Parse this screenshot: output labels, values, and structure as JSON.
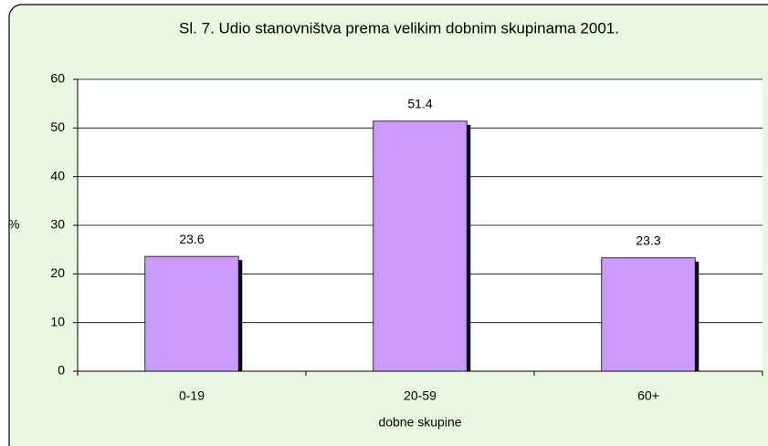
{
  "chart_data": {
    "type": "bar",
    "title": "Sl. 7. Udio stanovništva prema velikim dobnim skupinama 2001.",
    "y_label": "%",
    "x_label": "dobne skupine",
    "categories": [
      "0-19",
      "20-59",
      "60+"
    ],
    "values": [
      23.6,
      51.4,
      23.3
    ],
    "color": "#cc99ff",
    "ylim": [
      0,
      60
    ],
    "yticks": [
      0,
      10,
      20,
      30,
      40,
      50,
      60
    ],
    "grid": true
  }
}
